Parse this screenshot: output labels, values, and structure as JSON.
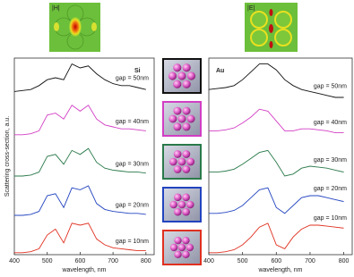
{
  "field_maps": [
    {
      "label": "|H|"
    },
    {
      "label": "|E|"
    }
  ],
  "chart_data": [
    {
      "type": "line",
      "title": "Si",
      "xlabel": "wavelength, nm",
      "ylabel": "Scattering cross-section, a.u.",
      "x": [
        400,
        425,
        450,
        475,
        500,
        525,
        550,
        575,
        600,
        625,
        650,
        675,
        700,
        725,
        750,
        775,
        800
      ],
      "xlim": [
        400,
        825
      ],
      "xticks": [
        400,
        500,
        600,
        700,
        800
      ],
      "ylim": [
        0,
        10
      ],
      "series": [
        {
          "name": "gap = 50nm",
          "color": "#111111",
          "values": [
            8.3,
            8.35,
            8.4,
            8.6,
            8.9,
            9.0,
            8.9,
            9.7,
            9.5,
            9.6,
            9.2,
            8.9,
            8.7,
            8.6,
            8.6,
            8.5,
            8.4
          ]
        },
        {
          "name": "gap = 40nm",
          "color": "#d23ec4",
          "values": [
            6.1,
            6.1,
            6.15,
            6.3,
            7.1,
            7.2,
            6.9,
            7.6,
            7.3,
            7.6,
            6.9,
            6.6,
            6.5,
            6.4,
            6.4,
            6.35,
            6.3
          ]
        },
        {
          "name": "gap = 30nm",
          "color": "#2a7a4a",
          "values": [
            4.0,
            4.0,
            4.05,
            4.2,
            5.0,
            5.1,
            4.6,
            5.3,
            5.1,
            5.4,
            4.7,
            4.4,
            4.3,
            4.25,
            4.2,
            4.2,
            4.15
          ]
        },
        {
          "name": "gap = 20nm",
          "color": "#2244c0",
          "values": [
            2.0,
            2.0,
            2.05,
            2.2,
            3.0,
            3.1,
            2.4,
            3.4,
            3.3,
            3.5,
            2.6,
            2.3,
            2.2,
            2.15,
            2.1,
            2.1,
            2.05
          ]
        },
        {
          "name": "gap = 10nm",
          "color": "#e03020",
          "values": [
            0.1,
            0.1,
            0.15,
            0.3,
            1.0,
            1.3,
            0.6,
            1.6,
            1.5,
            1.6,
            0.8,
            0.5,
            0.35,
            0.3,
            0.25,
            0.2,
            0.2
          ]
        }
      ]
    },
    {
      "type": "line",
      "title": "Au",
      "xlabel": "wavelength, nm",
      "x": [
        400,
        425,
        450,
        475,
        500,
        525,
        550,
        575,
        600,
        625,
        650,
        675,
        700,
        725,
        750,
        775,
        800
      ],
      "xlim": [
        400,
        825
      ],
      "xticks": [
        400,
        500,
        600,
        700,
        800
      ],
      "ylim": [
        0,
        10
      ],
      "series": [
        {
          "name": "gap = 50nm",
          "color": "#111111",
          "values": [
            8.4,
            8.45,
            8.5,
            8.6,
            8.9,
            9.3,
            9.7,
            9.7,
            9.4,
            8.9,
            8.6,
            8.4,
            8.3,
            8.2,
            8.1,
            8.0,
            8.0
          ]
        },
        {
          "name": "gap = 40nm",
          "color": "#d23ec4",
          "values": [
            6.3,
            6.3,
            6.35,
            6.45,
            6.7,
            7.0,
            7.4,
            7.3,
            6.8,
            6.3,
            6.3,
            6.4,
            6.4,
            6.35,
            6.3,
            6.2,
            6.2
          ]
        },
        {
          "name": "gap = 30nm",
          "color": "#2a7a4a",
          "values": [
            4.2,
            4.2,
            4.25,
            4.35,
            4.6,
            4.9,
            5.2,
            5.3,
            4.7,
            4.0,
            4.1,
            4.4,
            4.5,
            4.45,
            4.4,
            4.3,
            4.2
          ]
        },
        {
          "name": "gap = 20nm",
          "color": "#2244c0",
          "values": [
            2.1,
            2.1,
            2.15,
            2.25,
            2.5,
            2.9,
            3.3,
            3.4,
            2.4,
            2.1,
            2.5,
            2.9,
            3.0,
            3.0,
            2.9,
            2.8,
            2.7
          ]
        },
        {
          "name": "gap = 10nm",
          "color": "#e03020",
          "values": [
            0.1,
            0.1,
            0.15,
            0.25,
            0.5,
            0.9,
            1.4,
            1.6,
            0.5,
            0.3,
            0.9,
            1.3,
            1.5,
            1.5,
            1.45,
            1.4,
            1.35
          ]
        }
      ]
    }
  ]
}
